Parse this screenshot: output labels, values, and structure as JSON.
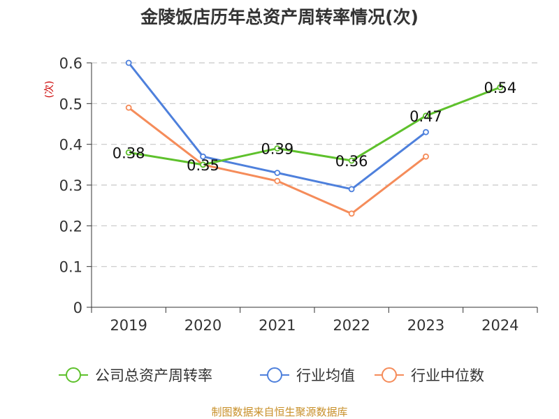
{
  "chart_data": {
    "type": "line",
    "title": "金陵饭店历年总资产周转率情况(次)",
    "ylabel": "(次)",
    "ylabel_color": "#cc0000",
    "categories": [
      "2019",
      "2020",
      "2021",
      "2022",
      "2023",
      "2024"
    ],
    "y_ticks": [
      "0",
      "0.1",
      "0.2",
      "0.3",
      "0.4",
      "0.5",
      "0.6"
    ],
    "ylim": [
      0,
      0.6
    ],
    "grid": true,
    "legend_position": "bottom",
    "series": [
      {
        "name": "公司总资产周转率",
        "color": "#5ec12c",
        "values": [
          0.38,
          0.35,
          0.39,
          0.36,
          0.47,
          0.54
        ],
        "labels": [
          "0.38",
          "0.35",
          "0.39",
          "0.36",
          "0.47",
          "0.54"
        ]
      },
      {
        "name": "行业均值",
        "color": "#4e80dc",
        "values": [
          0.6,
          0.37,
          0.33,
          0.29,
          0.43,
          null
        ]
      },
      {
        "name": "行业中位数",
        "color": "#f58c5a",
        "values": [
          0.49,
          0.35,
          0.31,
          0.23,
          0.37,
          null
        ]
      }
    ]
  },
  "footer": {
    "source": "制图数据来自恒生聚源数据库",
    "source_color": "#c8902a"
  }
}
